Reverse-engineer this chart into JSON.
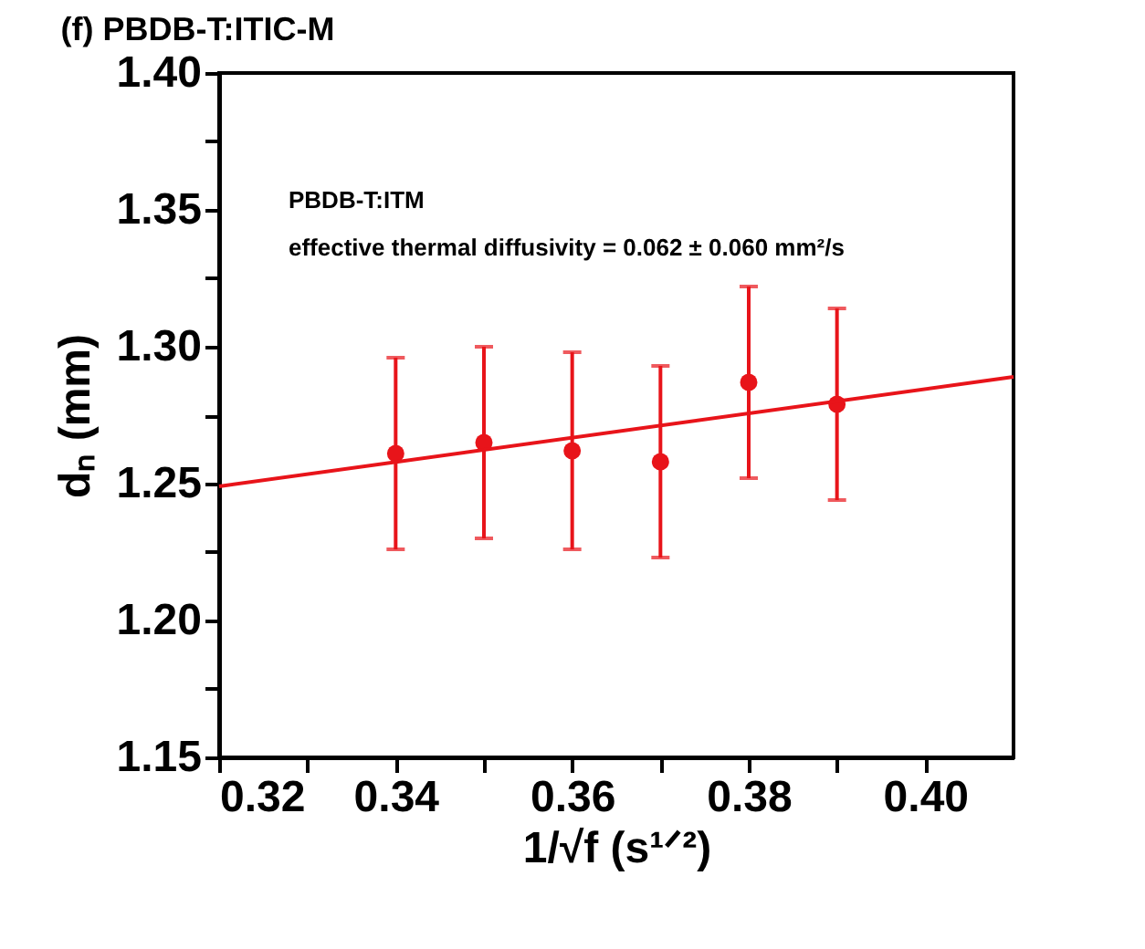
{
  "chart_data": {
    "type": "scatter",
    "title": "(f) PBDB-T:ITIC-M",
    "xlabel": "1/√f (s¹ᐟ²)",
    "ylabel": "dₙ (mm)",
    "annotations": [
      "PBDB-T:ITM",
      "effective thermal diffusivity = 0.062 ± 0.060 mm²/s"
    ],
    "xlim": [
      0.32,
      0.41
    ],
    "xticks": [
      {
        "value": 0.32,
        "label": "0.32"
      },
      {
        "value": 0.33,
        "label": null
      },
      {
        "value": 0.34,
        "label": "0.34"
      },
      {
        "value": 0.35,
        "label": null
      },
      {
        "value": 0.36,
        "label": "0.36"
      },
      {
        "value": 0.37,
        "label": null
      },
      {
        "value": 0.38,
        "label": "0.38"
      },
      {
        "value": 0.39,
        "label": null
      },
      {
        "value": 0.4,
        "label": "0.40"
      }
    ],
    "ylim": [
      1.15,
      1.4
    ],
    "yticks": [
      {
        "value": 1.15,
        "label": "1.15"
      },
      {
        "value": 1.175,
        "label": null
      },
      {
        "value": 1.2,
        "label": "1.20"
      },
      {
        "value": 1.225,
        "label": null
      },
      {
        "value": 1.25,
        "label": "1.25"
      },
      {
        "value": 1.275,
        "label": null
      },
      {
        "value": 1.3,
        "label": "1.30"
      },
      {
        "value": 1.325,
        "label": null
      },
      {
        "value": 1.35,
        "label": "1.35"
      },
      {
        "value": 1.375,
        "label": null
      },
      {
        "value": 1.4,
        "label": "1.40"
      }
    ],
    "grid": false,
    "marker": "circle",
    "series": [
      {
        "color": "#e8141a",
        "x": [
          0.34,
          0.35,
          0.36,
          0.37,
          0.38,
          0.39
        ],
        "values": [
          1.261,
          1.265,
          1.262,
          1.258,
          1.287,
          1.279
        ],
        "errors": [
          0.035,
          0.035,
          0.036,
          0.035,
          0.035,
          0.035
        ]
      },
      {
        "type": "line",
        "marker": "none",
        "color": "#e8141a",
        "x": [
          0.32,
          0.41
        ],
        "values": [
          1.249,
          1.289
        ]
      }
    ]
  }
}
